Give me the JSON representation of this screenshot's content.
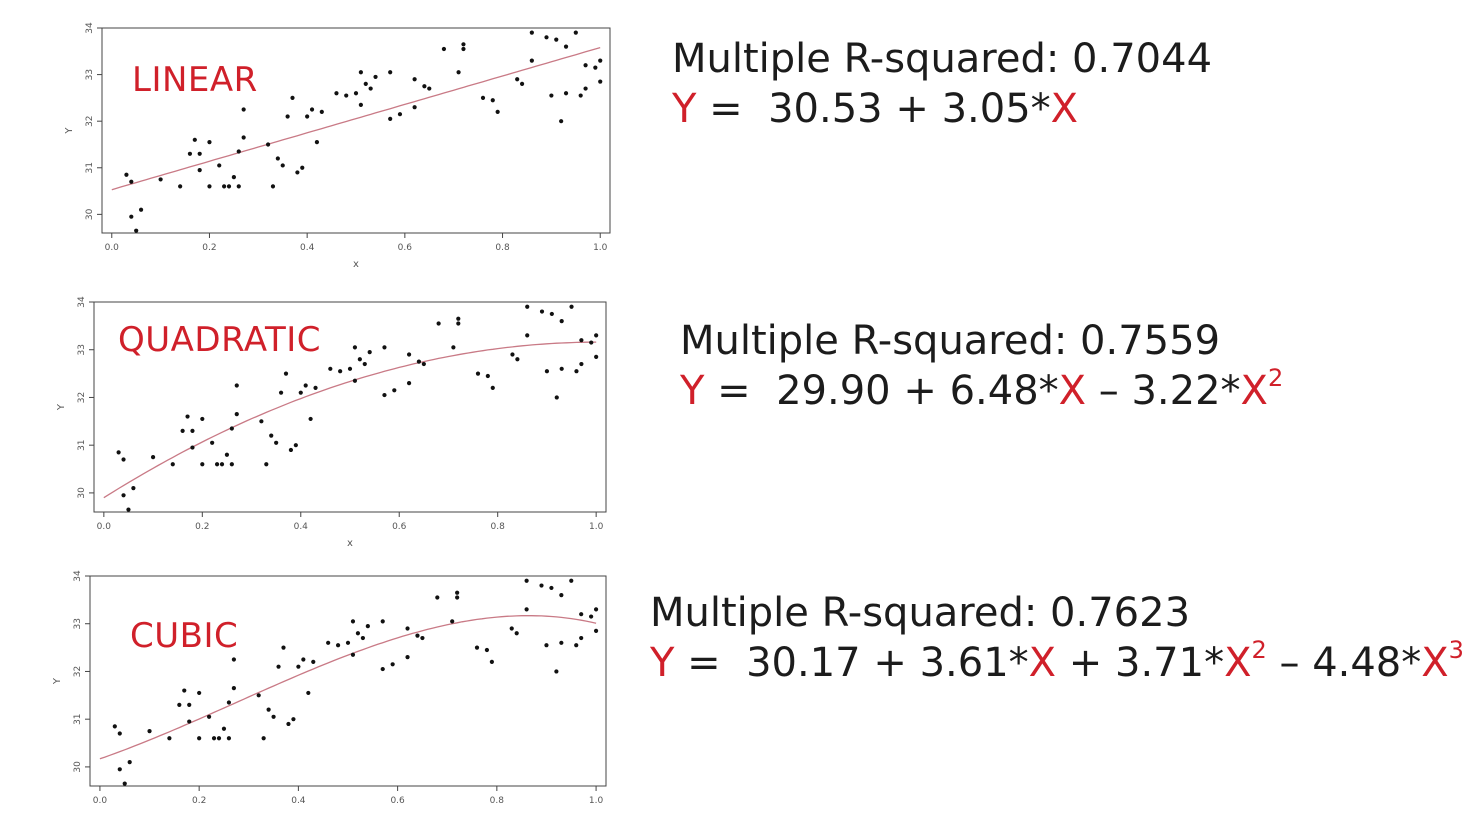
{
  "colors": {
    "accent": "#d0202a",
    "fit_line": "#c97a86",
    "points": "#111111"
  },
  "equation_parts": {
    "eq_sign": "=",
    "plus": "+",
    "minus": "–",
    "x_var": "X",
    "y_var": "Y"
  },
  "chart_data": [
    {
      "type": "scatter",
      "title": "LINEAR",
      "xlabel": "x",
      "ylabel": "Y",
      "xlim": [
        0,
        1
      ],
      "ylim": [
        29.6,
        34
      ],
      "xticks": [
        "0.0",
        "0.2",
        "0.4",
        "0.6",
        "0.8",
        "1.0"
      ],
      "yticks": [
        "30",
        "31",
        "32",
        "33",
        "34"
      ],
      "fit": {
        "kind": "polynomial",
        "coefficients": [
          30.53,
          3.05
        ]
      },
      "r_squared_text": "Multiple R-squared: 0.7044",
      "equation": {
        "c0": "30.53",
        "t1": "3.05*",
        "x1": "X"
      }
    },
    {
      "type": "scatter",
      "title": "QUADRATIC",
      "xlabel": "x",
      "ylabel": "Y",
      "xlim": [
        0,
        1
      ],
      "ylim": [
        29.6,
        34
      ],
      "xticks": [
        "0.0",
        "0.2",
        "0.4",
        "0.6",
        "0.8",
        "1.0"
      ],
      "yticks": [
        "30",
        "31",
        "32",
        "33",
        "34"
      ],
      "fit": {
        "kind": "polynomial",
        "coefficients": [
          29.9,
          6.48,
          -3.22
        ]
      },
      "r_squared_text": "Multiple R-squared: 0.7559",
      "equation": {
        "c0": "29.90",
        "t1": "6.48*",
        "x1": "X",
        "t2": "3.22*",
        "x2": "X",
        "p2": "2"
      }
    },
    {
      "type": "scatter",
      "title": "CUBIC",
      "xlabel": "",
      "ylabel": "Y",
      "xlim": [
        0,
        1
      ],
      "ylim": [
        29.6,
        34
      ],
      "xticks": [
        "0.0",
        "0.2",
        "0.4",
        "0.6",
        "0.8",
        "1.0"
      ],
      "yticks": [
        "30",
        "31",
        "32",
        "33",
        "34"
      ],
      "fit": {
        "kind": "polynomial",
        "coefficients": [
          30.17,
          3.61,
          3.71,
          -4.48
        ]
      },
      "r_squared_text": "Multiple R-squared: 0.7623",
      "equation": {
        "c0": "30.17",
        "t1": "3.61*",
        "x1": "X",
        "t2": "3.71*",
        "x2": "X",
        "p2": "2",
        "t3": "4.48*",
        "x3": "X",
        "p3": "3"
      }
    }
  ],
  "shared_points": [
    [
      0.03,
      30.85
    ],
    [
      0.04,
      30.7
    ],
    [
      0.04,
      29.95
    ],
    [
      0.05,
      29.65
    ],
    [
      0.06,
      30.1
    ],
    [
      0.1,
      30.75
    ],
    [
      0.14,
      30.6
    ],
    [
      0.16,
      31.3
    ],
    [
      0.17,
      31.6
    ],
    [
      0.18,
      31.3
    ],
    [
      0.18,
      30.95
    ],
    [
      0.2,
      31.55
    ],
    [
      0.2,
      30.6
    ],
    [
      0.22,
      31.05
    ],
    [
      0.23,
      30.6
    ],
    [
      0.24,
      30.6
    ],
    [
      0.25,
      30.8
    ],
    [
      0.26,
      30.6
    ],
    [
      0.26,
      31.35
    ],
    [
      0.27,
      31.65
    ],
    [
      0.27,
      32.25
    ],
    [
      0.32,
      31.5
    ],
    [
      0.33,
      30.6
    ],
    [
      0.34,
      31.2
    ],
    [
      0.35,
      31.05
    ],
    [
      0.36,
      32.1
    ],
    [
      0.37,
      32.5
    ],
    [
      0.38,
      30.9
    ],
    [
      0.39,
      31.0
    ],
    [
      0.4,
      32.1
    ],
    [
      0.41,
      32.25
    ],
    [
      0.42,
      31.55
    ],
    [
      0.43,
      32.2
    ],
    [
      0.46,
      32.6
    ],
    [
      0.48,
      32.55
    ],
    [
      0.5,
      32.6
    ],
    [
      0.51,
      32.35
    ],
    [
      0.51,
      33.05
    ],
    [
      0.52,
      32.8
    ],
    [
      0.53,
      32.7
    ],
    [
      0.54,
      32.95
    ],
    [
      0.57,
      33.05
    ],
    [
      0.57,
      32.05
    ],
    [
      0.59,
      32.15
    ],
    [
      0.62,
      32.3
    ],
    [
      0.62,
      32.9
    ],
    [
      0.64,
      32.75
    ],
    [
      0.65,
      32.7
    ],
    [
      0.68,
      33.55
    ],
    [
      0.71,
      33.05
    ],
    [
      0.72,
      33.65
    ],
    [
      0.72,
      33.55
    ],
    [
      0.76,
      32.5
    ],
    [
      0.78,
      32.45
    ],
    [
      0.79,
      32.2
    ],
    [
      0.83,
      32.9
    ],
    [
      0.84,
      32.8
    ],
    [
      0.86,
      33.3
    ],
    [
      0.86,
      33.9
    ],
    [
      0.89,
      33.8
    ],
    [
      0.9,
      32.55
    ],
    [
      0.91,
      33.75
    ],
    [
      0.92,
      32.0
    ],
    [
      0.93,
      32.6
    ],
    [
      0.93,
      33.6
    ],
    [
      0.95,
      33.9
    ],
    [
      0.96,
      32.55
    ],
    [
      0.97,
      32.7
    ],
    [
      0.97,
      33.2
    ],
    [
      0.99,
      33.15
    ],
    [
      1.0,
      33.3
    ],
    [
      1.0,
      32.85
    ]
  ]
}
